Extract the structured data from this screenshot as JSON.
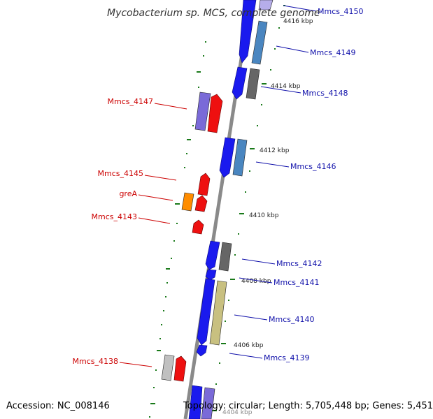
{
  "title": "Mycobacterium sp. MCS, complete genome",
  "footer": {
    "accession": "Accession: NC_008146",
    "summary": "Topology: circular; Length: 5,705,448 bp; Genes: 5,451"
  },
  "colors": {
    "backbone": "#8a8a8a",
    "tick": "#1a7a1a",
    "forward_label": "#1010aa",
    "reverse_label": "#cc0000",
    "cds_forward": "#1a1aee",
    "cds_reverse": "#ee1010",
    "cog_steel": "#4a86c0",
    "cog_gray": "#666666",
    "cog_violet": "#7a6ad8",
    "cog_orange": "#ff8c00",
    "cog_khaki": "#c8c080",
    "cog_silver": "#c0c0c0"
  },
  "ticks": [
    "4416 kbp",
    "4414 kbp",
    "4412 kbp",
    "4410 kbp",
    "4408 kbp",
    "4406 kbp",
    "4404 kbp"
  ],
  "genes": [
    {
      "name": "Mmcs_4150",
      "strand": "forward"
    },
    {
      "name": "Mmcs_4149",
      "strand": "forward"
    },
    {
      "name": "Mmcs_4148",
      "strand": "forward"
    },
    {
      "name": "Mmcs_4147",
      "strand": "reverse"
    },
    {
      "name": "Mmcs_4146",
      "strand": "forward"
    },
    {
      "name": "Mmcs_4145",
      "strand": "reverse"
    },
    {
      "name": "greA",
      "strand": "reverse"
    },
    {
      "name": "Mmcs_4143",
      "strand": "reverse"
    },
    {
      "name": "Mmcs_4142",
      "strand": "forward"
    },
    {
      "name": "Mmcs_4141",
      "strand": "forward"
    },
    {
      "name": "Mmcs_4140",
      "strand": "forward"
    },
    {
      "name": "Mmcs_4139",
      "strand": "forward"
    },
    {
      "name": "Mmcs_4138",
      "strand": "reverse"
    }
  ]
}
